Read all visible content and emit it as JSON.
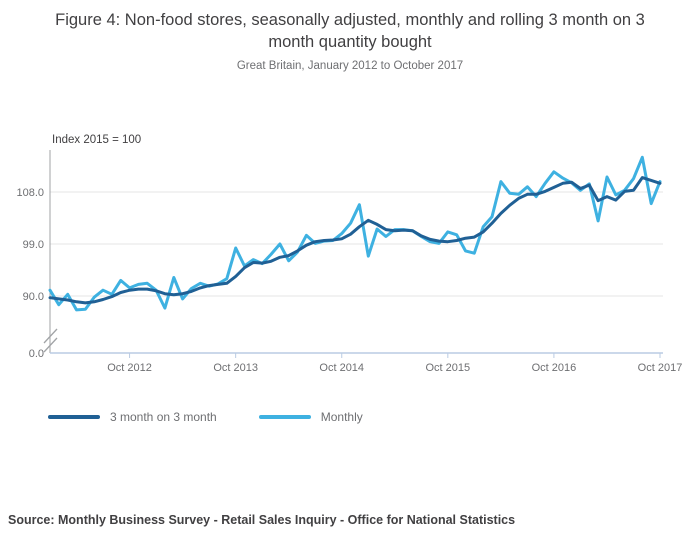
{
  "chart_data": {
    "type": "line",
    "title": "Figure 4: Non-food stores, seasonally adjusted, monthly and rolling 3 month on 3 month quantity bought",
    "subtitle": "Great Britain, January 2012 to October 2017",
    "unit_label": "Index 2015 = 100",
    "x_start": "Jan 2012",
    "x_end": "Oct 2017",
    "x_tick_labels": [
      "Oct 2012",
      "Oct 2013",
      "Oct 2014",
      "Oct 2015",
      "Oct 2016",
      "Oct 2017"
    ],
    "x_tick_month_indices": [
      9,
      21,
      33,
      45,
      57,
      69
    ],
    "y_ticks": [
      {
        "label": "0.0",
        "value": 0
      },
      {
        "label": "90.0",
        "value": 90
      },
      {
        "label": "99.0",
        "value": 99
      },
      {
        "label": "108.0",
        "value": 108
      }
    ],
    "y_axis_break_below": 90,
    "grid": true,
    "legend_position": "bottom-left",
    "series": [
      {
        "name": "3 month on 3 month",
        "color": "#206095",
        "values": [
          89.7,
          89.5,
          89.3,
          89.0,
          88.8,
          89.0,
          89.4,
          89.9,
          90.6,
          91.0,
          91.2,
          91.2,
          90.9,
          90.4,
          90.2,
          90.4,
          90.8,
          91.4,
          91.8,
          92.0,
          92.2,
          93.4,
          94.9,
          95.8,
          95.7,
          96.0,
          96.7,
          97.0,
          97.8,
          98.8,
          99.4,
          99.6,
          99.7,
          99.9,
          100.7,
          102.0,
          103.1,
          102.4,
          101.5,
          101.3,
          101.4,
          101.3,
          100.4,
          99.8,
          99.5,
          99.4,
          99.6,
          100.0,
          100.2,
          101.1,
          102.6,
          104.3,
          105.7,
          106.9,
          107.6,
          107.6,
          108.1,
          108.8,
          109.5,
          109.7,
          108.6,
          109.2,
          106.5,
          107.2,
          106.6,
          108.1,
          108.3,
          110.5,
          110.0,
          109.5
        ]
      },
      {
        "name": "Monthly",
        "color": "#3eb1e1",
        "values": [
          91.0,
          88.5,
          90.3,
          87.6,
          87.7,
          89.8,
          91.0,
          90.3,
          92.7,
          91.4,
          92.0,
          92.2,
          91.0,
          87.9,
          93.2,
          89.5,
          91.3,
          92.2,
          91.7,
          92.1,
          93.0,
          98.3,
          95.2,
          96.3,
          95.6,
          97.2,
          99.0,
          96.1,
          97.6,
          100.5,
          99.1,
          99.5,
          99.6,
          100.8,
          102.6,
          105.8,
          96.9,
          101.6,
          100.3,
          101.5,
          101.5,
          101.3,
          100.3,
          99.4,
          99.1,
          101.1,
          100.6,
          97.8,
          97.4,
          102.0,
          103.7,
          109.8,
          107.8,
          107.6,
          108.9,
          107.2,
          109.5,
          111.5,
          110.4,
          109.6,
          108.3,
          109.4,
          103.0,
          110.6,
          107.5,
          108.3,
          110.3,
          114.0,
          106.0,
          109.8
        ]
      }
    ]
  },
  "colors": {
    "grid": "#e4e4e4",
    "y_axis": "#a1a3a6",
    "x_axis": "#bacbe3",
    "title_text": "#414042",
    "muted_text": "#6e6f72"
  },
  "source": {
    "text": "Source: Monthly Business Survey - Retail Sales Inquiry - Office for National Statistics"
  }
}
